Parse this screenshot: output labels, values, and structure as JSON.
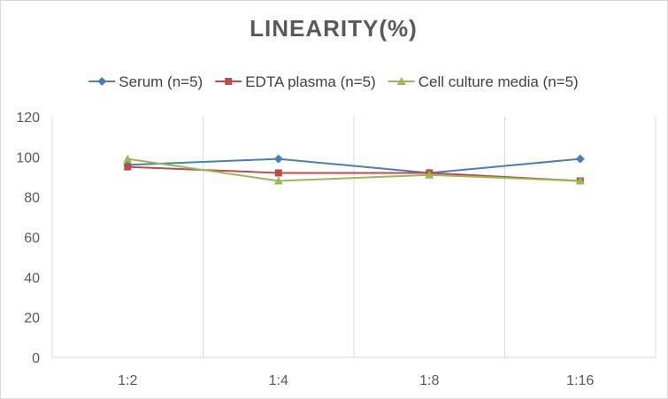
{
  "chart_data": {
    "type": "line",
    "title": "LINEARITY(%)",
    "xlabel": "",
    "ylabel": "",
    "categories": [
      "1:2",
      "1:4",
      "1:8",
      "1:16"
    ],
    "ylim": [
      0,
      120
    ],
    "yticks": [
      0,
      20,
      40,
      60,
      80,
      100,
      120
    ],
    "grid": "vertical",
    "legend_position": "top",
    "series": [
      {
        "name": "Serum (n=5)",
        "values": [
          96,
          99,
          92,
          99
        ],
        "color": "#4a7ebb",
        "marker": "diamond"
      },
      {
        "name": "EDTA plasma (n=5)",
        "values": [
          95,
          92,
          92,
          88
        ],
        "color": "#be4b48",
        "marker": "square"
      },
      {
        "name": "Cell culture media (n=5)",
        "values": [
          99,
          88,
          91,
          88
        ],
        "color": "#98b954",
        "marker": "triangle"
      }
    ]
  }
}
